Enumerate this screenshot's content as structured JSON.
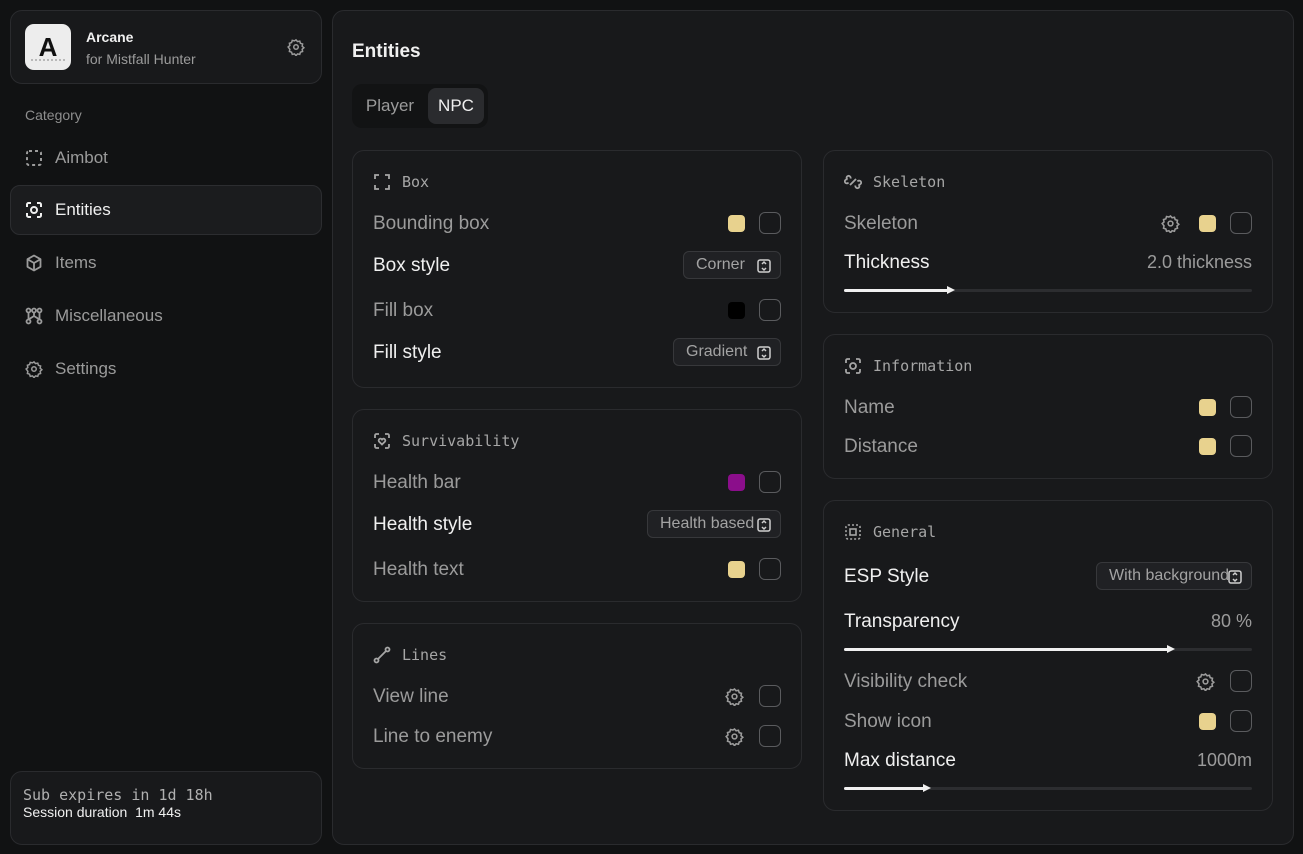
{
  "brand": {
    "name": "Arcane",
    "subtitle": "for Mistfall Hunter",
    "logo_letter": "A"
  },
  "sidebar": {
    "category_label": "Category",
    "items": [
      {
        "label": "Aimbot",
        "icon": "dashed-square-icon"
      },
      {
        "label": "Entities",
        "icon": "scan-face-icon",
        "active": true
      },
      {
        "label": "Items",
        "icon": "cube-icon"
      },
      {
        "label": "Miscellaneous",
        "icon": "network-icon"
      },
      {
        "label": "Settings",
        "icon": "gear-icon"
      }
    ]
  },
  "subscription": {
    "expires": "Sub expires in 1d 18h",
    "session": "Session duration  1m 44s"
  },
  "main": {
    "title": "Entities",
    "tabs": [
      "Player",
      "NPC"
    ],
    "active_tab": "NPC"
  },
  "cards": {
    "box": {
      "title": "Box",
      "bounding_box": {
        "label": "Bounding box",
        "color": "#e8d28e"
      },
      "box_style": {
        "label": "Box style",
        "value": "Corner"
      },
      "fill_box": {
        "label": "Fill box",
        "color": "#000000"
      },
      "fill_style": {
        "label": "Fill style",
        "value": "Gradient"
      }
    },
    "survivability": {
      "title": "Survivability",
      "health_bar": {
        "label": "Health bar",
        "color": "#8b0e8b"
      },
      "health_style": {
        "label": "Health style",
        "value": "Health based"
      },
      "health_text": {
        "label": "Health text",
        "color": "#e8d28e"
      }
    },
    "lines": {
      "title": "Lines",
      "view_line": {
        "label": "View line"
      },
      "line_to_enemy": {
        "label": "Line to enemy"
      }
    },
    "skeleton": {
      "title": "Skeleton",
      "skeleton": {
        "label": "Skeleton",
        "color": "#e8d28e"
      },
      "thickness": {
        "label": "Thickness",
        "value": "2.0 thickness",
        "fraction": 0.26
      }
    },
    "information": {
      "title": "Information",
      "name": {
        "label": "Name",
        "color": "#e8d28e"
      },
      "distance": {
        "label": "Distance",
        "color": "#e8d28e"
      }
    },
    "general": {
      "title": "General",
      "esp_style": {
        "label": "ESP Style",
        "value": "With background"
      },
      "transparency": {
        "label": "Transparency",
        "value": "80 %",
        "fraction": 0.8
      },
      "visibility_check": {
        "label": "Visibility check"
      },
      "show_icon": {
        "label": "Show icon",
        "color": "#e8d28e"
      },
      "max_distance": {
        "label": "Max distance",
        "value": "1000m",
        "fraction": 0.2
      }
    }
  }
}
